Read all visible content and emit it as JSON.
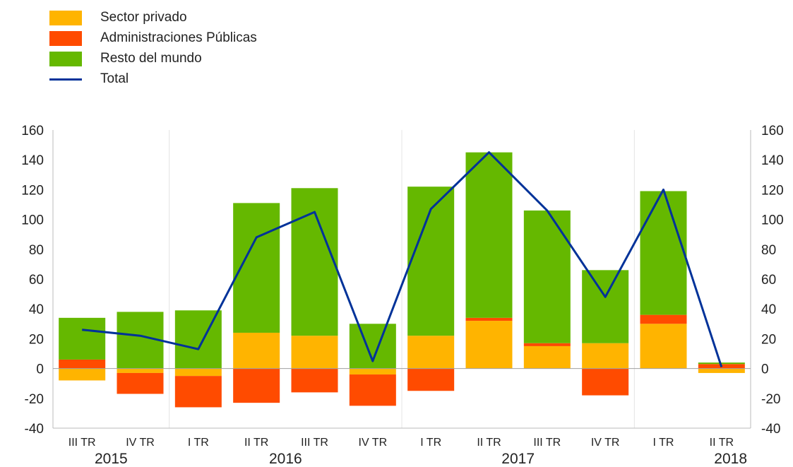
{
  "chart_data": {
    "type": "bar",
    "stacked": true,
    "categories": [
      "III TR",
      "IV TR",
      "I TR",
      "II TR",
      "III TR",
      "IV TR",
      "I TR",
      "II TR",
      "III TR",
      "IV TR",
      "I TR",
      "II TR"
    ],
    "years": [
      {
        "label": "2015",
        "span": [
          0,
          1
        ]
      },
      {
        "label": "2016",
        "span": [
          2,
          5
        ]
      },
      {
        "label": "2017",
        "span": [
          6,
          9
        ]
      },
      {
        "label": "2018",
        "span": [
          10,
          11
        ]
      }
    ],
    "series": [
      {
        "name": "Sector privado",
        "color": "#ffb400",
        "values": [
          -8,
          -3,
          -5,
          24,
          22,
          -4,
          22,
          32,
          15,
          17,
          30,
          -3
        ]
      },
      {
        "name": "Administraciones Públicas",
        "color": "#ff4b00",
        "values": [
          6,
          -14,
          -21,
          -23,
          -16,
          -21,
          -15,
          2,
          2,
          -18,
          6,
          3
        ]
      },
      {
        "name": "Resto del mundo",
        "color": "#65b800",
        "values": [
          28,
          38,
          39,
          87,
          99,
          30,
          100,
          111,
          89,
          49,
          83,
          1
        ]
      }
    ],
    "line": {
      "name": "Total",
      "color": "#003299",
      "values": [
        26,
        22,
        13,
        88,
        105,
        5,
        107,
        145,
        106,
        48,
        120,
        1
      ]
    },
    "ylim": [
      -40,
      160
    ],
    "yticks": [
      "160",
      "140",
      "120",
      "100",
      "80",
      "60",
      "40",
      "20",
      "0",
      "-20",
      "-40"
    ],
    "legend_position": "top-left",
    "grid": false
  }
}
